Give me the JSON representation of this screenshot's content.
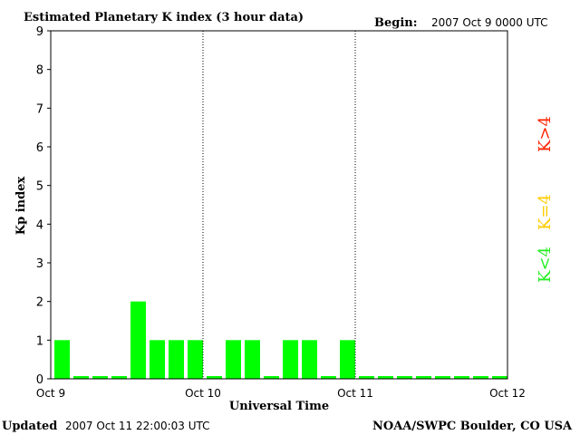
{
  "header": {
    "title": "Estimated Planetary K index (3 hour data)",
    "begin_label": "Begin:",
    "begin_value": "2007 Oct 9 0000 UTC"
  },
  "footer": {
    "updated_label": "Updated",
    "updated_value": "2007 Oct 11 22:00:03 UTC",
    "source": "NOAA/SWPC Boulder, CO USA"
  },
  "legend": {
    "items": [
      {
        "label": "K>4",
        "color": "#ff2200"
      },
      {
        "label": "K=4",
        "color": "#ffcc00"
      },
      {
        "label": "K<4",
        "color": "#22ee22"
      }
    ]
  },
  "colors": {
    "bar": "#00ff00",
    "axis": "#000000",
    "divider": "#000000"
  },
  "chart_data": {
    "type": "bar",
    "xlabel": "Universal Time",
    "ylabel": "Kp index",
    "ylim": [
      0,
      9
    ],
    "yticks": [
      0,
      1,
      2,
      3,
      4,
      5,
      6,
      7,
      8,
      9
    ],
    "xticks": [
      "Oct 9",
      "Oct 10",
      "Oct 11",
      "Oct 12"
    ],
    "day_dividers": [
      "Oct 10",
      "Oct 11"
    ],
    "bars_per_day": 8,
    "values": [
      1,
      0,
      0,
      0,
      2,
      1,
      1,
      1,
      0,
      1,
      1,
      0,
      1,
      1,
      0,
      1,
      0,
      0,
      0,
      0,
      0,
      0,
      0,
      0
    ],
    "grid": false
  }
}
